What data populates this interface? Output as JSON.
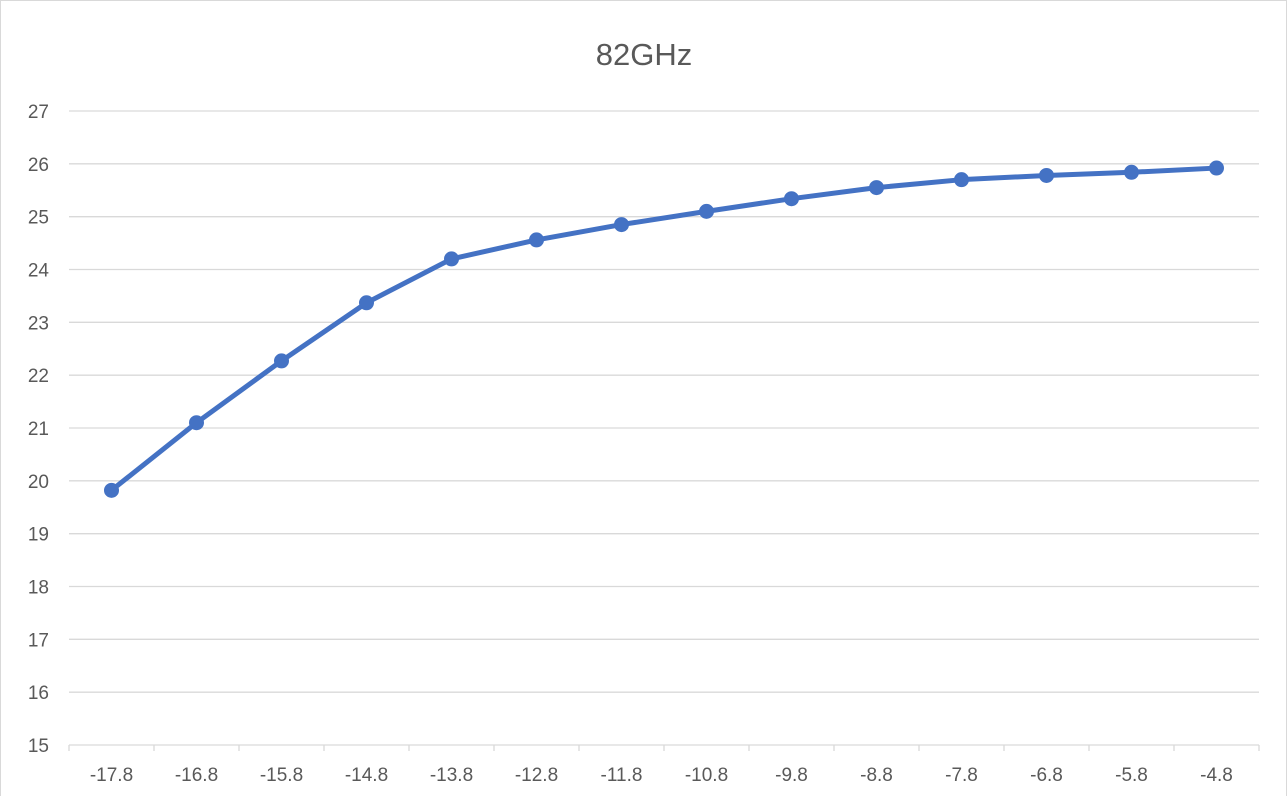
{
  "chart_data": {
    "type": "line",
    "title": "82GHz",
    "xlabel": "",
    "ylabel": "",
    "categories": [
      "-17.8",
      "-16.8",
      "-15.8",
      "-14.8",
      "-13.8",
      "-12.8",
      "-11.8",
      "-10.8",
      "-9.8",
      "-8.8",
      "-7.8",
      "-6.8",
      "-5.8",
      "-4.8"
    ],
    "series": [
      {
        "name": "",
        "values": [
          19.82,
          21.1,
          22.27,
          23.37,
          24.2,
          24.56,
          24.85,
          25.1,
          25.34,
          25.55,
          25.7,
          25.78,
          25.84,
          25.92
        ]
      }
    ],
    "ylim": [
      15,
      27
    ],
    "yticks": [
      "15",
      "16",
      "17",
      "18",
      "19",
      "20",
      "21",
      "22",
      "23",
      "24",
      "25",
      "26",
      "27"
    ],
    "grid": true,
    "legend": "none",
    "colors": {
      "line": "#4472c4",
      "grid": "#d9d9d9",
      "text": "#595959"
    }
  }
}
